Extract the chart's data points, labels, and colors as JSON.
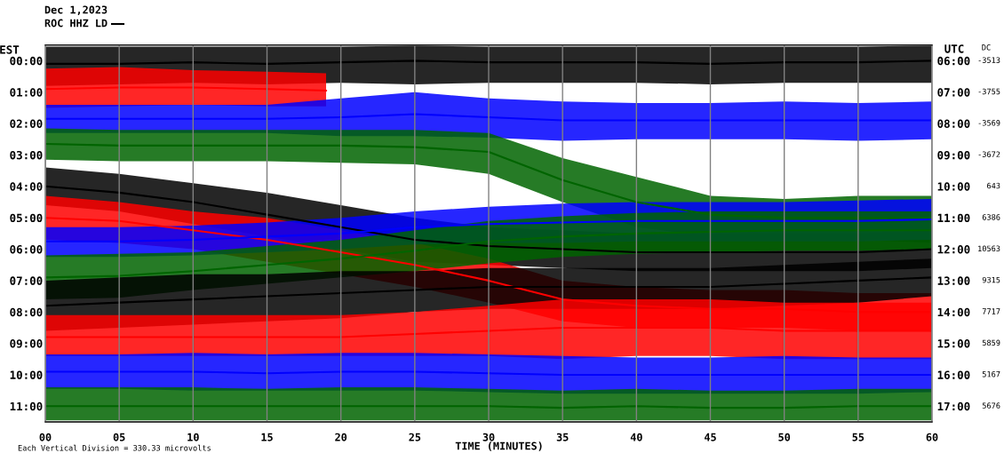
{
  "chart_data": {
    "type": "line",
    "title": "Dec 1,2023",
    "subtitle": "ROC HHZ LD",
    "xlabel": "TIME (MINUTES)",
    "ylabel": "EST",
    "y2label": "UTC",
    "annotations": [
      "Each Vertical Division = 330.33 microvolts",
      "DC",
      "-3513",
      "-3755",
      "-3569",
      "-3672",
      "643",
      "6386",
      "10563",
      "9315",
      "7717",
      "5859",
      "5167",
      "5676"
    ],
    "x": [
      0,
      5,
      10,
      15,
      20,
      25,
      30,
      35,
      40,
      45,
      50,
      55,
      60
    ],
    "xlim": [
      0,
      60
    ],
    "xticks": [
      {
        "value": 0,
        "label": "00"
      },
      {
        "value": 5,
        "label": "05"
      },
      10,
      15,
      20,
      25,
      30,
      35,
      40,
      45,
      50,
      55,
      60
    ],
    "ylim": [
      11.5,
      -0.5
    ],
    "yticks": [
      {
        "value": 0,
        "label": "00:00"
      },
      {
        "value": 1,
        "label": "01:00"
      },
      {
        "value": 2,
        "label": "02:00"
      },
      {
        "value": 3,
        "label": "03:00"
      },
      {
        "value": 4,
        "label": "04:00"
      },
      {
        "value": 5,
        "label": "05:00"
      },
      {
        "value": 6,
        "label": "06:00"
      },
      {
        "value": 7,
        "label": "07:00"
      },
      {
        "value": 8,
        "label": "08:00"
      },
      {
        "value": 9,
        "label": "09:00"
      },
      {
        "value": 10,
        "label": "10:00"
      },
      {
        "value": 11,
        "label": "11:00"
      }
    ],
    "y2lim": [
      17.5,
      5.5
    ],
    "y2ticks": [
      {
        "value": 6,
        "label": "06:00"
      },
      {
        "value": 7,
        "label": "07:00"
      },
      {
        "value": 8,
        "label": "08:00"
      },
      {
        "value": 9,
        "label": "09:00"
      },
      {
        "value": 10,
        "label": "10:00"
      },
      {
        "value": 11,
        "label": "11:00"
      },
      {
        "value": 12,
        "label": "12:00"
      },
      {
        "value": 13,
        "label": "13:00"
      },
      {
        "value": 14,
        "label": "14:00"
      },
      {
        "value": 15,
        "label": "15:00"
      },
      {
        "value": 16,
        "label": "16:00"
      },
      {
        "value": 17,
        "label": "17:00"
      }
    ],
    "grid": "x",
    "series": [
      {
        "color": "#000000",
        "values": [
          0.1,
          0.1,
          0.05,
          0.1,
          0.05,
          0.0,
          0.05,
          0.05,
          0.05,
          0.1,
          0.05,
          0.05,
          0.0
        ],
        "lower": [
          -0.45,
          -0.45,
          -0.45,
          -0.45,
          -0.45,
          -0.48,
          -0.45,
          -0.45,
          -0.45,
          -0.45,
          -0.45,
          -0.45,
          -0.48
        ],
        "upper": [
          0.8,
          0.75,
          0.7,
          0.75,
          0.7,
          0.75,
          0.7,
          0.7,
          0.7,
          0.75,
          0.7,
          0.7,
          0.7
        ]
      },
      {
        "color": "#ff0000",
        "x": [
          0,
          5,
          10,
          15,
          19
        ],
        "values": [
          0.9,
          0.85,
          0.85,
          0.9,
          0.95
        ],
        "lower": [
          0.25,
          0.2,
          0.3,
          0.35,
          0.4
        ],
        "upper": [
          1.5,
          1.45,
          1.4,
          1.45,
          1.45
        ]
      },
      {
        "color": "#0000ff",
        "values": [
          1.85,
          1.85,
          1.85,
          1.85,
          1.8,
          1.7,
          1.8,
          1.9,
          1.9,
          1.9,
          1.9,
          1.9,
          1.9
        ],
        "lower": [
          1.4,
          1.4,
          1.4,
          1.4,
          1.2,
          1.0,
          1.2,
          1.3,
          1.35,
          1.35,
          1.3,
          1.35,
          1.3
        ],
        "upper": [
          2.3,
          2.3,
          2.3,
          2.3,
          2.4,
          2.4,
          2.45,
          2.55,
          2.5,
          2.5,
          2.5,
          2.55,
          2.5
        ]
      },
      {
        "color": "#006400",
        "values": [
          2.65,
          2.7,
          2.7,
          2.7,
          2.7,
          2.75,
          2.9,
          3.8,
          4.5,
          4.9,
          5.0,
          5.0,
          5.0
        ],
        "lower": [
          2.15,
          2.2,
          2.2,
          2.2,
          2.2,
          2.2,
          2.3,
          3.1,
          3.7,
          4.3,
          4.4,
          4.3,
          4.3
        ],
        "upper": [
          3.15,
          3.2,
          3.2,
          3.2,
          3.25,
          3.3,
          3.6,
          4.5,
          5.3,
          5.6,
          5.7,
          5.7,
          5.8
        ]
      },
      {
        "color": "#000000",
        "values": [
          4.0,
          4.2,
          4.5,
          4.9,
          5.3,
          5.7,
          5.9,
          6.0,
          6.1,
          6.1,
          6.1,
          6.1,
          6.0
        ],
        "lower": [
          3.4,
          3.6,
          3.9,
          4.2,
          4.6,
          5.0,
          5.3,
          5.4,
          5.5,
          5.5,
          5.5,
          5.5,
          5.4
        ],
        "upper": [
          4.6,
          4.8,
          5.2,
          5.6,
          6.0,
          6.4,
          6.5,
          6.6,
          6.7,
          6.7,
          6.7,
          6.7,
          6.6
        ]
      },
      {
        "color": "#ff0000",
        "values": [
          5.0,
          5.1,
          5.4,
          5.7,
          6.1,
          6.5,
          7.0,
          7.6,
          7.8,
          7.9,
          7.9,
          8.0,
          8.0
        ],
        "lower": [
          4.3,
          4.5,
          4.8,
          5.0,
          5.4,
          5.8,
          6.3,
          7.0,
          7.2,
          7.3,
          7.3,
          7.4,
          7.4
        ],
        "upper": [
          5.7,
          5.8,
          6.0,
          6.4,
          6.8,
          7.2,
          7.7,
          8.3,
          8.5,
          8.5,
          8.5,
          8.6,
          8.6
        ]
      },
      {
        "color": "#0000ff",
        "values": [
          5.75,
          5.75,
          5.7,
          5.6,
          5.5,
          5.3,
          5.2,
          5.15,
          5.1,
          5.1,
          5.1,
          5.1,
          5.05
        ],
        "lower": [
          5.3,
          5.3,
          5.25,
          5.15,
          5.0,
          4.8,
          4.65,
          4.55,
          4.5,
          4.5,
          4.5,
          4.45,
          4.4
        ],
        "upper": [
          6.25,
          6.25,
          6.2,
          6.1,
          6.0,
          5.85,
          5.8,
          5.8,
          5.75,
          5.75,
          5.75,
          5.75,
          5.7
        ]
      },
      {
        "color": "#006400",
        "values": [
          6.9,
          6.85,
          6.7,
          6.5,
          6.3,
          6.05,
          5.75,
          5.6,
          5.5,
          5.45,
          5.4,
          5.4,
          5.4
        ],
        "lower": [
          6.2,
          6.15,
          6.1,
          5.9,
          5.7,
          5.4,
          5.1,
          4.95,
          4.85,
          4.8,
          4.8,
          4.8,
          4.8
        ],
        "upper": [
          7.6,
          7.55,
          7.3,
          7.1,
          6.9,
          6.7,
          6.45,
          6.25,
          6.15,
          6.1,
          6.05,
          6.05,
          6.0
        ]
      },
      {
        "color": "#000000",
        "values": [
          7.8,
          7.7,
          7.6,
          7.5,
          7.4,
          7.3,
          7.2,
          7.2,
          7.2,
          7.2,
          7.1,
          7.0,
          6.9
        ],
        "lower": [
          7.0,
          6.9,
          6.8,
          6.8,
          6.7,
          6.7,
          6.6,
          6.6,
          6.6,
          6.6,
          6.5,
          6.4,
          6.3
        ],
        "upper": [
          8.6,
          8.5,
          8.4,
          8.3,
          8.2,
          8.0,
          7.9,
          7.9,
          7.9,
          7.9,
          7.8,
          7.7,
          7.5
        ]
      },
      {
        "color": "#ff0000",
        "values": [
          8.8,
          8.8,
          8.8,
          8.8,
          8.8,
          8.7,
          8.6,
          8.5,
          8.5,
          8.5,
          8.6,
          8.6,
          8.6
        ],
        "lower": [
          8.1,
          8.1,
          8.1,
          8.1,
          8.1,
          8.0,
          7.8,
          7.6,
          7.6,
          7.6,
          7.7,
          7.7,
          7.7
        ],
        "upper": [
          9.4,
          9.4,
          9.4,
          9.4,
          9.4,
          9.4,
          9.4,
          9.5,
          9.4,
          9.4,
          9.5,
          9.5,
          9.5
        ]
      },
      {
        "color": "#0000ff",
        "values": [
          9.9,
          9.9,
          9.9,
          9.95,
          9.9,
          9.9,
          9.95,
          10.0,
          10.0,
          10.0,
          10.0,
          10.0,
          10.0
        ],
        "lower": [
          9.35,
          9.35,
          9.3,
          9.35,
          9.3,
          9.3,
          9.35,
          9.4,
          9.45,
          9.45,
          9.4,
          9.45,
          9.45
        ],
        "upper": [
          10.45,
          10.45,
          10.5,
          10.5,
          10.5,
          10.5,
          10.55,
          10.6,
          10.6,
          10.6,
          10.6,
          10.6,
          10.55
        ]
      },
      {
        "color": "#006400",
        "values": [
          11.0,
          11.0,
          11.0,
          11.0,
          11.0,
          11.0,
          11.0,
          11.05,
          11.0,
          11.05,
          11.05,
          11.0,
          11.0
        ],
        "lower": [
          10.4,
          10.4,
          10.4,
          10.45,
          10.4,
          10.4,
          10.45,
          10.5,
          10.45,
          10.5,
          10.5,
          10.45,
          10.45
        ],
        "upper": [
          11.45,
          11.45,
          11.45,
          11.45,
          11.45,
          11.45,
          11.45,
          11.45,
          11.45,
          11.45,
          11.45,
          11.45,
          11.45
        ]
      }
    ]
  }
}
